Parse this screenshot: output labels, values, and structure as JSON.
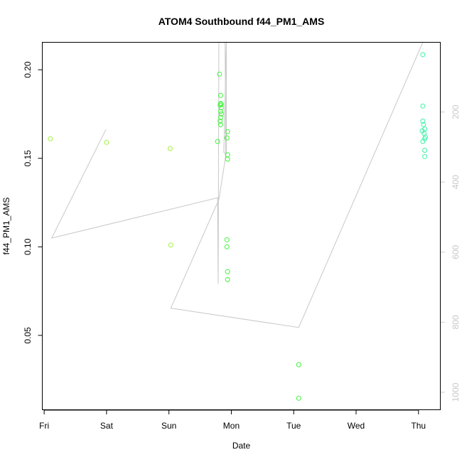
{
  "chart_data": {
    "type": "scatter",
    "title": "ATOM4 Southbound f44_PM1_AMS",
    "xlabel": "Date",
    "ylabel": "f44_PM1_AMS",
    "x_ticks": [
      "Fri",
      "Sat",
      "Sun",
      "Mon",
      "Tue",
      "Wed",
      "Thu"
    ],
    "xlim": [
      -0.03,
      6.35
    ],
    "ylim": [
      0.008,
      0.2155
    ],
    "y_ticks": [
      0.05,
      0.1,
      0.15,
      0.2
    ],
    "y_tick_labels": [
      "0.05",
      "0.10",
      "0.15",
      "0.20"
    ],
    "y2_lim": [
      1050,
      1
    ],
    "y2_ticks": [
      200,
      400,
      600,
      800,
      1000
    ],
    "y2_tick_labels": [
      "200",
      "400",
      "600",
      "800",
      "1000"
    ],
    "colors": {
      "green_yellow": "#a3f23a",
      "green": "#3ef23a",
      "aqua": "#3af2a6",
      "line": "#c8c8c8",
      "axis": "#000000",
      "right_axis": "#c8c8c8"
    },
    "series": [
      {
        "color": "#a3f23a",
        "points": [
          [
            0.1,
            0.161
          ],
          [
            1.0,
            0.159
          ],
          [
            2.02,
            0.1555
          ],
          [
            2.03,
            0.101
          ]
        ]
      },
      {
        "color": "#3ef23a",
        "points": [
          [
            2.78,
            0.1595
          ],
          [
            2.81,
            0.1975
          ],
          [
            2.83,
            0.1855
          ],
          [
            2.83,
            0.181
          ],
          [
            2.84,
            0.1805
          ],
          [
            2.82,
            0.18
          ],
          [
            2.84,
            0.1785
          ],
          [
            2.83,
            0.1765
          ],
          [
            2.84,
            0.175
          ],
          [
            2.83,
            0.173
          ],
          [
            2.82,
            0.171
          ],
          [
            2.83,
            0.169
          ],
          [
            2.94,
            0.165
          ],
          [
            2.93,
            0.1615
          ],
          [
            2.94,
            0.152
          ],
          [
            2.94,
            0.1495
          ],
          [
            2.93,
            0.104
          ],
          [
            2.93,
            0.1
          ],
          [
            2.94,
            0.086
          ],
          [
            2.94,
            0.0815
          ],
          [
            4.08,
            0.0335
          ],
          [
            4.08,
            0.0145
          ]
        ]
      },
      {
        "color": "#3af2a6",
        "points": [
          [
            6.07,
            0.2085
          ],
          [
            6.07,
            0.1795
          ],
          [
            6.07,
            0.171
          ],
          [
            6.08,
            0.169
          ],
          [
            6.1,
            0.1665
          ],
          [
            6.06,
            0.1655
          ],
          [
            6.09,
            0.164
          ],
          [
            6.11,
            0.162
          ],
          [
            6.1,
            0.161
          ],
          [
            6.07,
            0.1595
          ],
          [
            6.1,
            0.1545
          ],
          [
            6.1,
            0.151
          ]
        ]
      }
    ],
    "pressure_line": {
      "y2_axis": true,
      "points": [
        [
          0.99,
          250
        ],
        [
          0.12,
          560
        ],
        [
          2.78,
          445
        ],
        [
          2.79,
          690
        ],
        [
          2.8,
          0
        ],
        [
          2.9,
          0
        ],
        [
          2.91,
          320
        ],
        [
          2.88,
          315
        ],
        [
          2.92,
          0
        ],
        [
          2.92,
          315
        ],
        [
          2.8,
          450
        ],
        [
          2.03,
          760
        ],
        [
          4.08,
          815
        ],
        [
          6.07,
          0
        ]
      ]
    }
  }
}
